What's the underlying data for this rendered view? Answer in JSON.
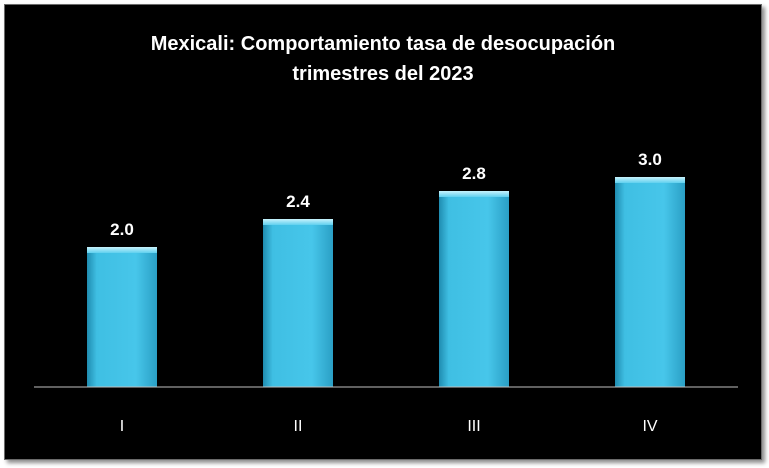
{
  "chart_data": {
    "type": "bar",
    "title": "Mexicali: Comportamiento tasa de desocupación",
    "subtitle": "trimestres del 2023",
    "categories": [
      "I",
      "II",
      "III",
      "IV"
    ],
    "values": [
      2.0,
      2.4,
      2.8,
      3.0
    ],
    "data_labels": [
      "2.0",
      "2.4",
      "2.8",
      "3.0"
    ],
    "xlabel": "",
    "ylabel": "",
    "ylim": [
      0,
      4.1
    ],
    "grid": false,
    "legend": "none",
    "colors": {
      "background": "#000000",
      "bar_fill": "#3fbfe3",
      "bar_highlight": "#9ce6f7",
      "bar_shadow": "#1f8cb0",
      "text": "#ffffff",
      "axis": "#bfbfbf"
    }
  }
}
